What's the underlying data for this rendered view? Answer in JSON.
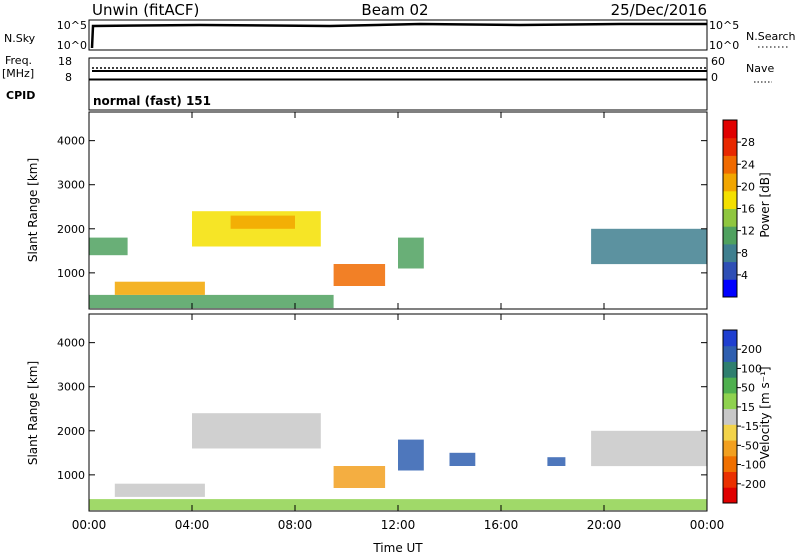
{
  "header": {
    "station": "Unwin (fitACF)",
    "beam": "Beam 02",
    "date": "25/Dec/2016"
  },
  "status_panels": {
    "nsky_label": "N.Sky",
    "nsky_ticks": [
      "10^5",
      "10^0"
    ],
    "nsearch_label": "N.Search",
    "freq_label_1": "Freq.",
    "freq_label_2": "[MHz]",
    "freq_ticks": [
      "18",
      "8"
    ],
    "nave_label": "Nave",
    "nave_ticks": [
      "60",
      "0"
    ],
    "cpid_label": "CPID",
    "cpid_value": "normal (fast) 151"
  },
  "colors": {
    "power_scale": [
      "#0000ff",
      "#2f4fb5",
      "#3f7f8f",
      "#4fa15f",
      "#8fc63f",
      "#f4e000",
      "#f2a600",
      "#f06a00",
      "#e82800",
      "#e00000"
    ],
    "velocity_scale": [
      "#1f3fd0",
      "#2f5fb0",
      "#2f7f6f",
      "#4fb04f",
      "#8fd24f",
      "#c8c8c8",
      "#f3d34a",
      "#f2a020",
      "#f07000",
      "#ea3000",
      "#e00000"
    ]
  },
  "chart_data": [
    {
      "type": "heatmap",
      "title": "Power",
      "xlabel": "",
      "ylabel": "Slant Range [km]",
      "xlim": [
        "00:00",
        "24:00"
      ],
      "ylim": [
        180,
        4650
      ],
      "x_ticks": [
        "00:00",
        "04:00",
        "08:00",
        "12:00",
        "16:00",
        "20:00",
        "00:00"
      ],
      "y_ticks": [
        1000,
        2000,
        3000,
        4000
      ],
      "colorbar": {
        "label": "Power [dB]",
        "range": [
          0,
          32
        ],
        "ticks": [
          4,
          8,
          12,
          16,
          20,
          24,
          28
        ]
      },
      "regions": [
        {
          "t0": 0.0,
          "t1": 9.5,
          "r0": 200,
          "r1": 500,
          "value": 10
        },
        {
          "t0": 0.0,
          "t1": 1.5,
          "r0": 1400,
          "r1": 1800,
          "value": 10
        },
        {
          "t0": 1.0,
          "t1": 4.5,
          "r0": 500,
          "r1": 800,
          "value": 20
        },
        {
          "t0": 4.0,
          "t1": 9.0,
          "r0": 1600,
          "r1": 2400,
          "value": 16
        },
        {
          "t0": 5.5,
          "t1": 8.0,
          "r0": 2000,
          "r1": 2300,
          "value": 22
        },
        {
          "t0": 9.5,
          "t1": 11.5,
          "r0": 700,
          "r1": 1200,
          "value": 24
        },
        {
          "t0": 12.0,
          "t1": 13.0,
          "r0": 1100,
          "r1": 1800,
          "value": 12
        },
        {
          "t0": 19.5,
          "t1": 24.0,
          "r0": 1200,
          "r1": 2000,
          "value": 8
        }
      ]
    },
    {
      "type": "heatmap",
      "title": "Velocity",
      "xlabel": "Time UT",
      "ylabel": "Slant Range [km]",
      "xlim": [
        "00:00",
        "24:00"
      ],
      "ylim": [
        180,
        4650
      ],
      "x_ticks": [
        "00:00",
        "04:00",
        "08:00",
        "12:00",
        "16:00",
        "20:00",
        "00:00"
      ],
      "y_ticks": [
        1000,
        2000,
        3000,
        4000
      ],
      "colorbar": {
        "label": "Velocity [m s⁻¹]",
        "range": [
          -250,
          250
        ],
        "ticks": [
          200,
          100,
          50,
          15,
          -15,
          -50,
          -100,
          -200
        ]
      },
      "regions": [
        {
          "t0": 0.0,
          "t1": 24.0,
          "r0": 200,
          "r1": 450,
          "value": 40
        },
        {
          "t0": 1.0,
          "t1": 4.5,
          "r0": 500,
          "r1": 800,
          "value": 0
        },
        {
          "t0": 4.0,
          "t1": 9.0,
          "r0": 1600,
          "r1": 2400,
          "value": 0
        },
        {
          "t0": 9.5,
          "t1": 11.5,
          "r0": 700,
          "r1": 1200,
          "value": -80
        },
        {
          "t0": 12.0,
          "t1": 13.0,
          "r0": 1100,
          "r1": 1800,
          "value": 180
        },
        {
          "t0": 14.0,
          "t1": 15.0,
          "r0": 1200,
          "r1": 1500,
          "value": 200
        },
        {
          "t0": 17.8,
          "t1": 18.5,
          "r0": 1200,
          "r1": 1400,
          "value": 200
        },
        {
          "t0": 19.5,
          "t1": 24.0,
          "r0": 1200,
          "r1": 2000,
          "value": 0
        }
      ]
    }
  ]
}
